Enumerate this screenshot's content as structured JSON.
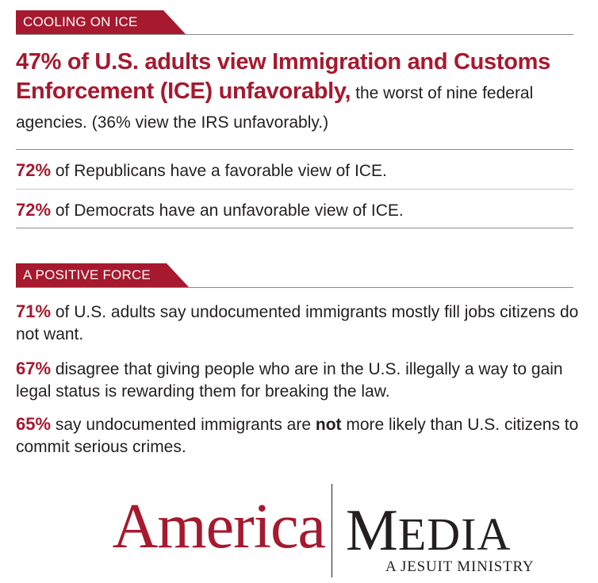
{
  "section1": {
    "tag": "COOLING ON ICE",
    "headline_red": "47% of U.S. adults view Immigration and Customs Enforcement (ICE) unfavorably,",
    "headline_rest": " the worst of nine federal agencies. (36% view the IRS unfavorably.)",
    "stats": [
      {
        "pct": "72%",
        "text": " of Republicans have a favorable view of ICE."
      },
      {
        "pct": "72%",
        "text": " of Democrats have an unfavorable view of ICE."
      }
    ]
  },
  "section2": {
    "tag": "A POSITIVE FORCE",
    "items": [
      {
        "pct": "71%",
        "text": " of U.S. adults say undocumented immigrants mostly fill jobs citizens do not want."
      },
      {
        "pct": "67%",
        "text": " disagree that giving people who are in the U.S. illegally a way to gain legal status is rewarding them for breaking the law."
      },
      {
        "pct": "65%",
        "text_before": " say undocumented immigrants are ",
        "emphasis": "not",
        "text_after": " more likely than U.S. citizens to commit serious crimes."
      }
    ]
  },
  "logo": {
    "left": "America",
    "right_initial": "M",
    "right_rest": "EDIA",
    "subtitle": "A JESUIT MINISTRY"
  },
  "colors": {
    "accent": "#a6192e",
    "text": "#231f20",
    "rule": "#8c8c8c"
  }
}
